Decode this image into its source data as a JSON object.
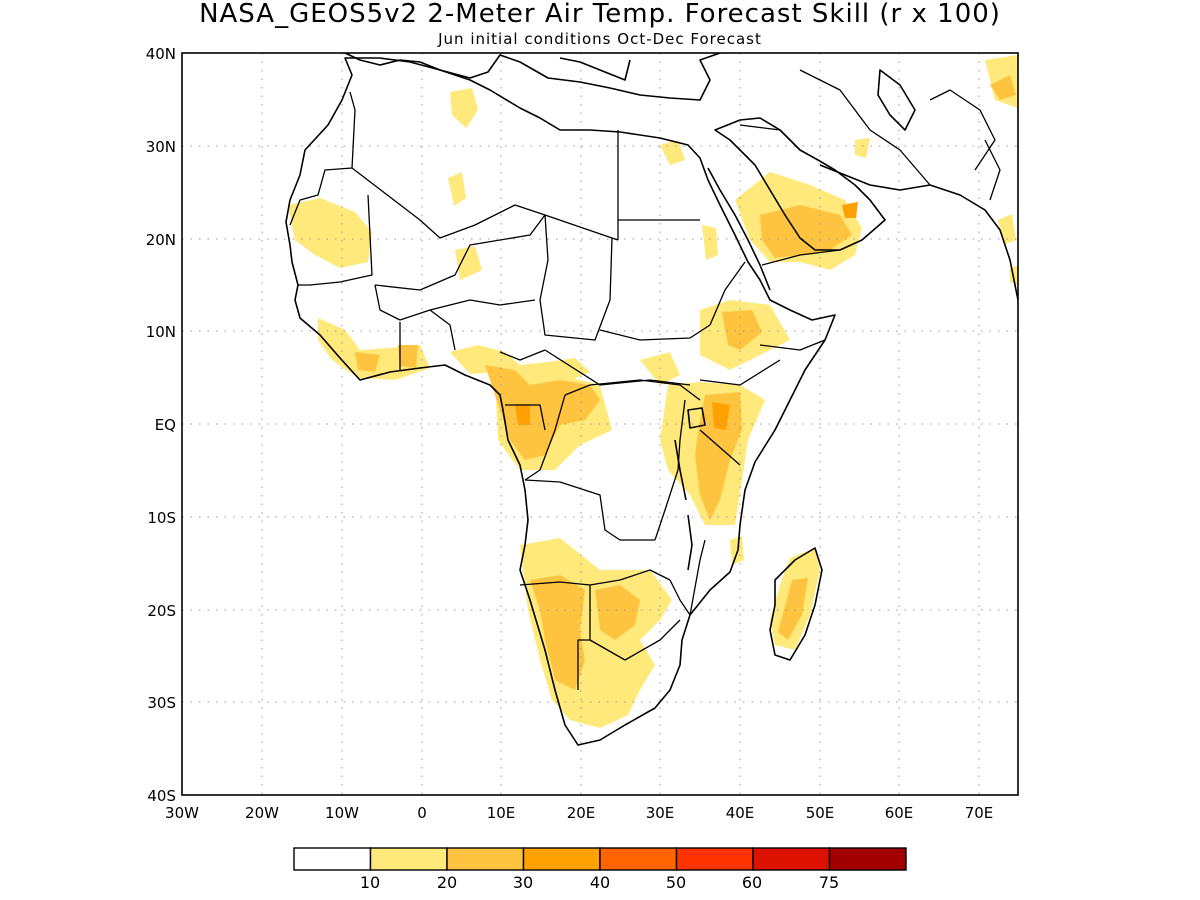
{
  "title": "NASA_GEOS5v2 2-Meter Air Temp. Forecast Skill (r x 100)",
  "subtitle": "Jun initial conditions  Oct-Dec Forecast",
  "axes": {
    "lat_labels": [
      "40N",
      "30N",
      "20N",
      "10N",
      "EQ",
      "10S",
      "20S",
      "30S",
      "40S"
    ],
    "lon_labels": [
      "30W",
      "20W",
      "10W",
      "0",
      "10E",
      "20E",
      "30E",
      "40E",
      "50E",
      "60E",
      "70E"
    ]
  },
  "colorbar": {
    "labels": [
      "10",
      "20",
      "30",
      "40",
      "50",
      "60",
      "75"
    ],
    "colors": [
      "#ffffff",
      "#ffe97a",
      "#ffc43f",
      "#ffa103",
      "#ff6400",
      "#ff3300",
      "#dd1100",
      "#a20000"
    ]
  }
}
